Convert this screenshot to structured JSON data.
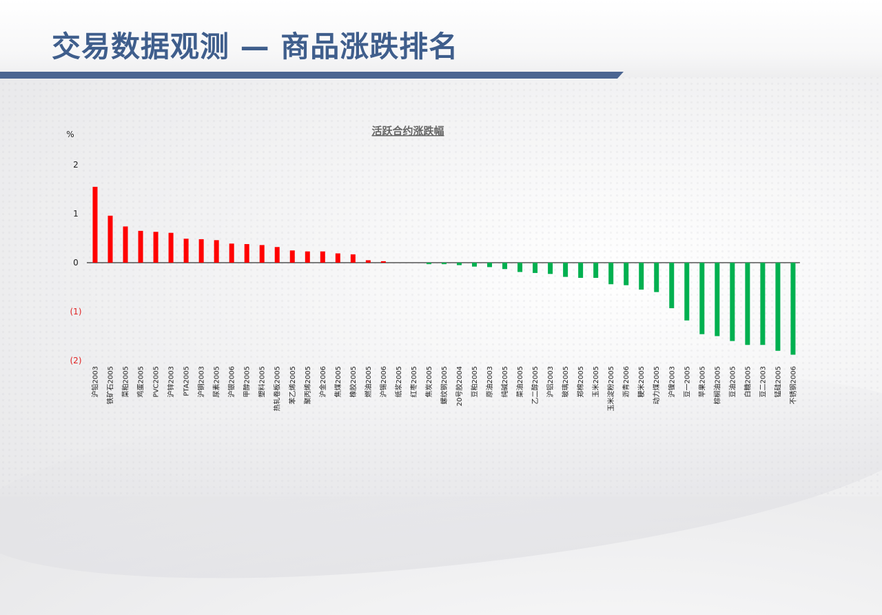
{
  "slide": {
    "title": "交易数据观测 — 商品涨跌排名"
  },
  "colors": {
    "title": "#3f5e8c",
    "title_rule": "#4b6591",
    "up": "#ff0000",
    "down": "#00b050",
    "negative_tick": "#e02020",
    "axis_text": "#222222"
  },
  "chart_data": {
    "type": "bar",
    "title": "活跃合约涨跌幅",
    "ylabel": "%",
    "ylim": [
      -2,
      2
    ],
    "yticks": [
      {
        "value": 2,
        "label": "2"
      },
      {
        "value": 1,
        "label": "1"
      },
      {
        "value": 0,
        "label": "0"
      },
      {
        "value": -1,
        "label": "(1)"
      },
      {
        "value": -2,
        "label": "(2)"
      }
    ],
    "grid": false,
    "legend": "none",
    "categories": [
      "沪铅2003",
      "铁矿石2005",
      "菜粕2005",
      "鸡蛋2005",
      "PVC2005",
      "沪锌2003",
      "PTA2005",
      "沪铜2003",
      "尿素2005",
      "沪银2006",
      "甲醇2005",
      "塑料2005",
      "热轧卷板2005",
      "苯乙烯2005",
      "聚丙烯2005",
      "沪金2006",
      "焦煤2005",
      "橡胶2005",
      "燃油2005",
      "沪锡2006",
      "纸浆2005",
      "红枣2005",
      "焦炭2005",
      "螺纹钢2005",
      "20号胶2004",
      "豆粕2005",
      "原油2003",
      "纯碱2005",
      "菜油2005",
      "乙二醇2005",
      "沪铝2003",
      "玻璃2005",
      "郑棉2005",
      "玉米2005",
      "玉米淀粉2005",
      "沥青2006",
      "粳米2005",
      "动力煤2005",
      "沪镍2003",
      "豆一2005",
      "苹果2005",
      "棕榈油2005",
      "豆油2005",
      "白糖2005",
      "豆二2003",
      "锰硅2005",
      "不锈钢2006"
    ],
    "values": [
      1.55,
      0.96,
      0.74,
      0.65,
      0.63,
      0.61,
      0.49,
      0.48,
      0.46,
      0.39,
      0.38,
      0.36,
      0.32,
      0.25,
      0.23,
      0.23,
      0.19,
      0.17,
      0.05,
      0.03,
      0.0,
      0.0,
      -0.03,
      -0.03,
      -0.05,
      -0.08,
      -0.09,
      -0.13,
      -0.19,
      -0.21,
      -0.23,
      -0.29,
      -0.31,
      -0.31,
      -0.44,
      -0.46,
      -0.55,
      -0.6,
      -0.93,
      -1.18,
      -1.46,
      -1.5,
      -1.6,
      -1.68,
      -1.68,
      -1.8,
      -1.88
    ]
  }
}
